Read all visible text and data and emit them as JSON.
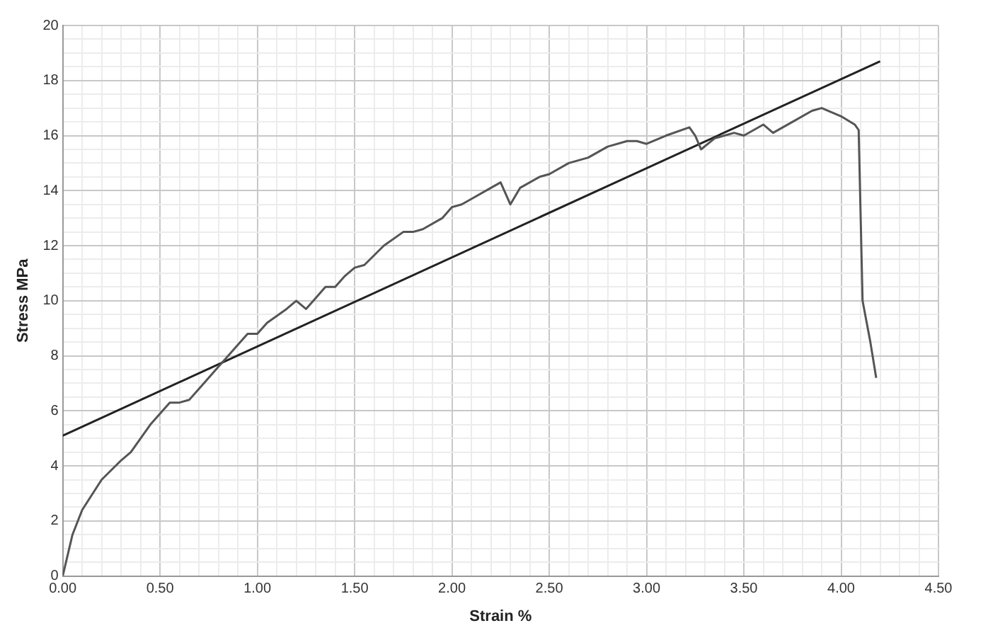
{
  "chart_data": {
    "type": "line",
    "xlabel": "Strain %",
    "ylabel": "Stress MPa",
    "xlim": [
      0,
      4.5
    ],
    "ylim": [
      0,
      20
    ],
    "xticks": [
      {
        "value": 0,
        "label": "0.00"
      },
      {
        "value": 0.1,
        "label": null
      },
      {
        "value": 0.2,
        "label": null
      },
      {
        "value": 0.3,
        "label": null
      },
      {
        "value": 0.4,
        "label": null
      },
      {
        "value": 0.5,
        "label": "0.50"
      },
      {
        "value": 0.6,
        "label": null
      },
      {
        "value": 0.7,
        "label": null
      },
      {
        "value": 0.8,
        "label": null
      },
      {
        "value": 0.9,
        "label": null
      },
      {
        "value": 1,
        "label": "1.00"
      },
      {
        "value": 1.1,
        "label": null
      },
      {
        "value": 1.2,
        "label": null
      },
      {
        "value": 1.3,
        "label": null
      },
      {
        "value": 1.4,
        "label": null
      },
      {
        "value": 1.5,
        "label": "1.50"
      },
      {
        "value": 1.6,
        "label": null
      },
      {
        "value": 1.7,
        "label": null
      },
      {
        "value": 1.8,
        "label": null
      },
      {
        "value": 1.9,
        "label": null
      },
      {
        "value": 2,
        "label": "2.00"
      },
      {
        "value": 2.1,
        "label": null
      },
      {
        "value": 2.2,
        "label": null
      },
      {
        "value": 2.3,
        "label": null
      },
      {
        "value": 2.4,
        "label": null
      },
      {
        "value": 2.5,
        "label": "2.50"
      },
      {
        "value": 2.6,
        "label": null
      },
      {
        "value": 2.7,
        "label": null
      },
      {
        "value": 2.8,
        "label": null
      },
      {
        "value": 2.9,
        "label": null
      },
      {
        "value": 3,
        "label": "3.00"
      },
      {
        "value": 3.1,
        "label": null
      },
      {
        "value": 3.2,
        "label": null
      },
      {
        "value": 3.3,
        "label": null
      },
      {
        "value": 3.4,
        "label": null
      },
      {
        "value": 3.5,
        "label": "3.50"
      },
      {
        "value": 3.6,
        "label": null
      },
      {
        "value": 3.7,
        "label": null
      },
      {
        "value": 3.8,
        "label": null
      },
      {
        "value": 3.9,
        "label": null
      },
      {
        "value": 4,
        "label": "4.00"
      },
      {
        "value": 4.1,
        "label": null
      },
      {
        "value": 4.2,
        "label": null
      },
      {
        "value": 4.3,
        "label": null
      },
      {
        "value": 4.4,
        "label": null
      },
      {
        "value": 4.5,
        "label": "4.50"
      }
    ],
    "yticks": [
      0,
      {
        "value": 0.5,
        "label": null
      },
      {
        "value": 1,
        "label": null
      },
      {
        "value": 1.5,
        "label": null
      },
      2,
      {
        "value": 2.5,
        "label": null
      },
      {
        "value": 3,
        "label": null
      },
      {
        "value": 3.5,
        "label": null
      },
      4,
      {
        "value": 4.5,
        "label": null
      },
      {
        "value": 5,
        "label": null
      },
      {
        "value": 5.5,
        "label": null
      },
      6,
      {
        "value": 6.5,
        "label": null
      },
      {
        "value": 7,
        "label": null
      },
      {
        "value": 7.5,
        "label": null
      },
      8,
      {
        "value": 8.5,
        "label": null
      },
      {
        "value": 9,
        "label": null
      },
      {
        "value": 9.5,
        "label": null
      },
      10,
      {
        "value": 10.5,
        "label": null
      },
      {
        "value": 11,
        "label": null
      },
      {
        "value": 11.5,
        "label": null
      },
      12,
      {
        "value": 12.5,
        "label": null
      },
      {
        "value": 13,
        "label": null
      },
      {
        "value": 13.5,
        "label": null
      },
      14,
      {
        "value": 14.5,
        "label": null
      },
      {
        "value": 15,
        "label": null
      },
      {
        "value": 15.5,
        "label": null
      },
      16,
      {
        "value": 16.5,
        "label": null
      },
      {
        "value": 17,
        "label": null
      },
      {
        "value": 17.5,
        "label": null
      },
      18,
      {
        "value": 18.5,
        "label": null
      },
      {
        "value": 19,
        "label": null
      },
      {
        "value": 19.5,
        "label": null
      },
      20
    ],
    "grid": true,
    "legend": false,
    "marker": "none",
    "line_style": "solid",
    "series": [
      {
        "type": "line",
        "color": "#555555",
        "x": [
          0,
          0.05,
          0.1,
          0.2,
          0.3,
          0.35,
          0.45,
          0.55,
          0.6,
          0.65,
          0.7,
          0.8,
          0.9,
          0.95,
          1.0,
          1.05,
          1.15,
          1.2,
          1.25,
          1.3,
          1.35,
          1.4,
          1.45,
          1.5,
          1.55,
          1.65,
          1.75,
          1.8,
          1.85,
          1.95,
          2.0,
          2.05,
          2.1,
          2.2,
          2.25,
          2.3,
          2.35,
          2.45,
          2.5,
          2.6,
          2.7,
          2.8,
          2.9,
          2.95,
          3.0,
          3.1,
          3.22,
          3.25,
          3.28,
          3.35,
          3.45,
          3.5,
          3.6,
          3.65,
          3.75,
          3.85,
          3.9,
          4.0,
          4.07,
          4.09,
          4.11,
          4.15,
          4.18
        ],
        "values": [
          0,
          1.5,
          2.4,
          3.5,
          4.2,
          4.5,
          5.5,
          6.3,
          6.3,
          6.4,
          6.8,
          7.6,
          8.4,
          8.8,
          8.8,
          9.2,
          9.7,
          10.0,
          9.7,
          10.1,
          10.5,
          10.5,
          10.9,
          11.2,
          11.3,
          12.0,
          12.5,
          12.5,
          12.6,
          13.0,
          13.4,
          13.5,
          13.7,
          14.1,
          14.3,
          13.5,
          14.1,
          14.5,
          14.6,
          15.0,
          15.2,
          15.6,
          15.8,
          15.8,
          15.7,
          16.0,
          16.3,
          16.0,
          15.5,
          15.9,
          16.1,
          16.0,
          16.4,
          16.1,
          16.5,
          16.9,
          17.0,
          16.7,
          16.4,
          16.2,
          10.0,
          8.5,
          7.2
        ]
      },
      {
        "type": "line",
        "color": "#222222",
        "x": [
          0,
          4.2
        ],
        "values": [
          5.1,
          18.7
        ]
      }
    ]
  }
}
